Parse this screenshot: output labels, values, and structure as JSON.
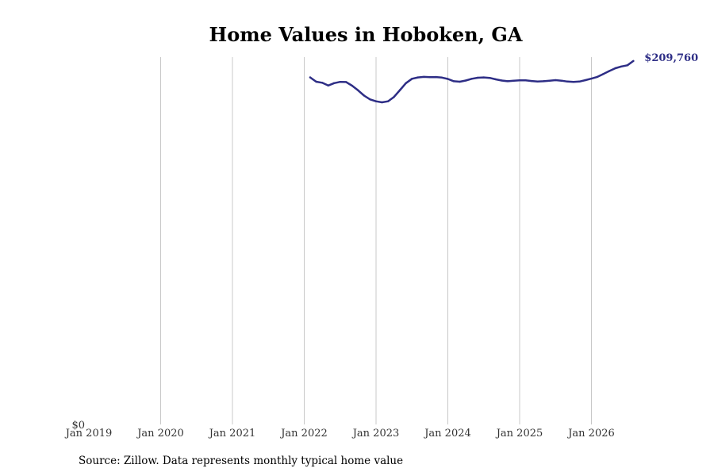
{
  "chart_data": {
    "type": "line",
    "title": "Home Values in Hoboken, GA",
    "xlabel": "",
    "ylabel": "",
    "x_ticks": [
      "Jan 2019",
      "Jan 2020",
      "Jan 2021",
      "Jan 2022",
      "Jan 2023",
      "Jan 2024",
      "Jan 2025",
      "Jan 2026"
    ],
    "y_tick_label": "$0",
    "ylim": [
      0,
      212000
    ],
    "xlim": [
      "2019-01",
      "2026-09"
    ],
    "grid": "vertical",
    "line_color": "#2e2e86",
    "end_label": "$209,760",
    "series": [
      {
        "points": [
          [
            "2022-02",
            200300
          ],
          [
            "2022-03",
            197800
          ],
          [
            "2022-04",
            197200
          ],
          [
            "2022-05",
            195600
          ],
          [
            "2022-06",
            197000
          ],
          [
            "2022-07",
            197700
          ],
          [
            "2022-08",
            197600
          ],
          [
            "2022-09",
            195500
          ],
          [
            "2022-10",
            192800
          ],
          [
            "2022-11",
            189800
          ],
          [
            "2022-12",
            187600
          ],
          [
            "2023-01",
            186500
          ],
          [
            "2023-02",
            185900
          ],
          [
            "2023-03",
            186500
          ],
          [
            "2023-04",
            189000
          ],
          [
            "2023-05",
            193000
          ],
          [
            "2023-06",
            197000
          ],
          [
            "2023-07",
            199500
          ],
          [
            "2023-08",
            200300
          ],
          [
            "2023-09",
            200600
          ],
          [
            "2023-10",
            200400
          ],
          [
            "2023-11",
            200500
          ],
          [
            "2023-12",
            200200
          ],
          [
            "2024-01",
            199400
          ],
          [
            "2024-02",
            198100
          ],
          [
            "2024-03",
            197800
          ],
          [
            "2024-04",
            198500
          ],
          [
            "2024-05",
            199500
          ],
          [
            "2024-06",
            200100
          ],
          [
            "2024-07",
            200300
          ],
          [
            "2024-08",
            200000
          ],
          [
            "2024-09",
            199200
          ],
          [
            "2024-10",
            198500
          ],
          [
            "2024-11",
            198100
          ],
          [
            "2024-12",
            198400
          ],
          [
            "2025-01",
            198600
          ],
          [
            "2025-02",
            198600
          ],
          [
            "2025-03",
            198200
          ],
          [
            "2025-04",
            197900
          ],
          [
            "2025-05",
            198100
          ],
          [
            "2025-06",
            198400
          ],
          [
            "2025-07",
            198700
          ],
          [
            "2025-08",
            198400
          ],
          [
            "2025-09",
            197900
          ],
          [
            "2025-10",
            197700
          ],
          [
            "2025-11",
            197900
          ],
          [
            "2025-12",
            198700
          ],
          [
            "2026-01",
            199600
          ],
          [
            "2026-02",
            200600
          ],
          [
            "2026-03",
            202300
          ],
          [
            "2026-04",
            204000
          ],
          [
            "2026-05",
            205600
          ],
          [
            "2026-06",
            206600
          ],
          [
            "2026-07",
            207300
          ],
          [
            "2026-08",
            209760
          ]
        ]
      }
    ]
  },
  "footer": {
    "source": "Source: Zillow. Data represents monthly typical home value"
  }
}
